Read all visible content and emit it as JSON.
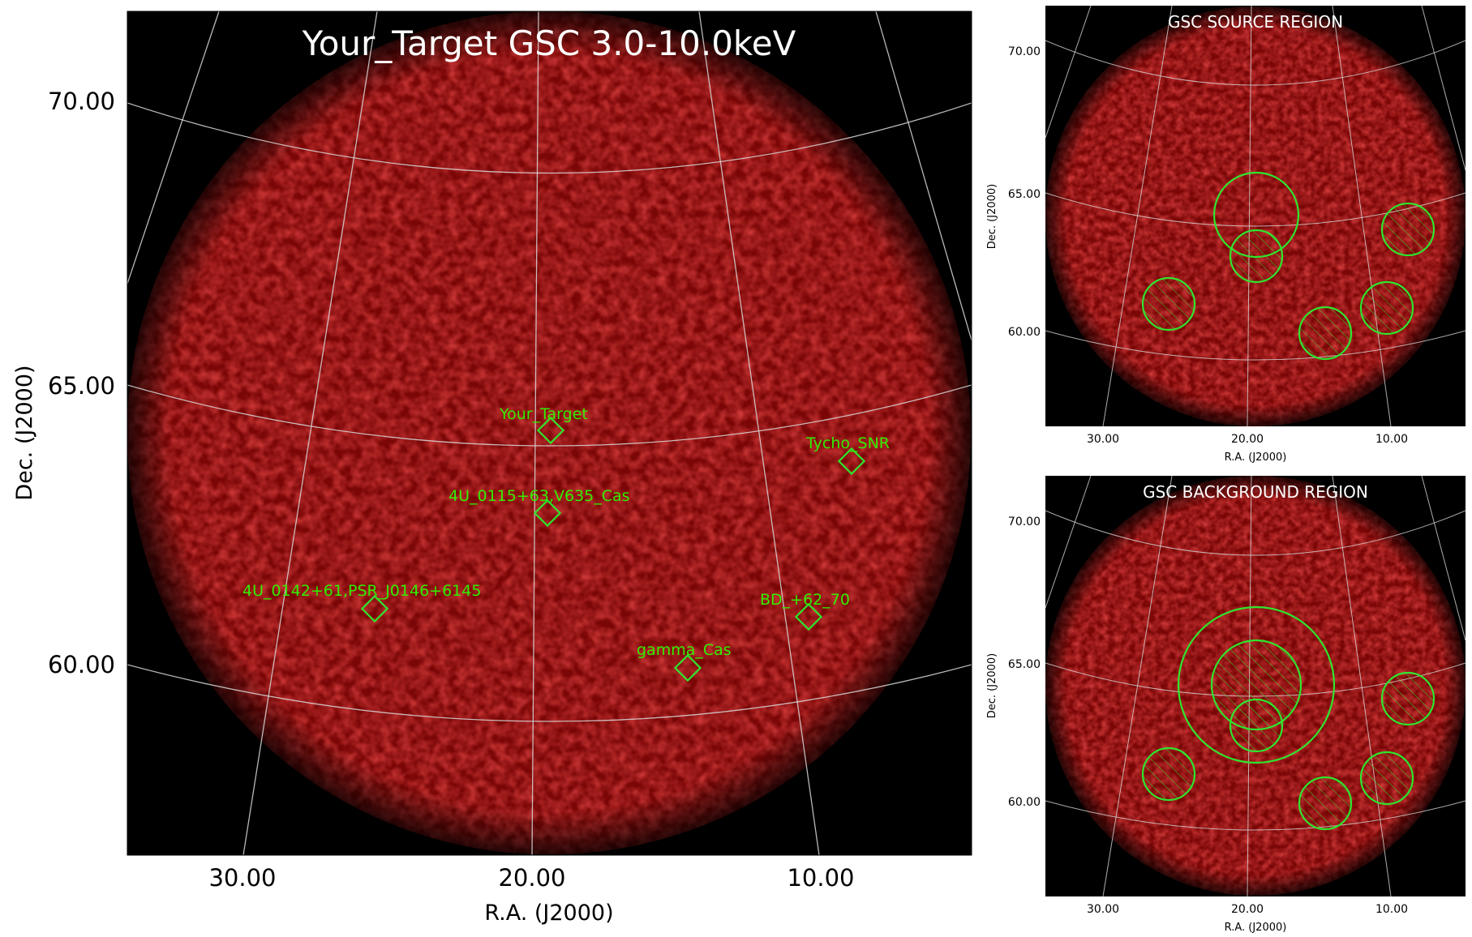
{
  "main_panel": {
    "title": "Your_Target GSC 3.0-10.0keV",
    "ylabel": "Dec. (J2000)",
    "xlabel": "R.A. (J2000)",
    "x_ticks": [
      "30.00",
      "20.00",
      "10.00"
    ],
    "y_ticks": [
      "70.00",
      "65.00",
      "60.00"
    ],
    "sources": [
      {
        "name": "Your_Target"
      },
      {
        "name": "Tycho_SNR"
      },
      {
        "name": "4U_0115+63,V635_Cas"
      },
      {
        "name": "4U_0142+61,PSR_J0146+6145"
      },
      {
        "name": "BD_+62_70"
      },
      {
        "name": "gamma_Cas"
      }
    ]
  },
  "source_panel": {
    "title": "GSC SOURCE REGION",
    "ylabel": "Dec. (J2000)",
    "xlabel": "R.A. (J2000)",
    "x_ticks": [
      "30.00",
      "20.00",
      "10.00"
    ],
    "y_ticks": [
      "70.00",
      "65.00",
      "60.00"
    ]
  },
  "background_panel": {
    "title": "GSC BACKGROUND REGION",
    "ylabel": "Dec. (J2000)",
    "xlabel": "R.A. (J2000)",
    "x_ticks": [
      "30.00",
      "20.00",
      "10.00"
    ],
    "y_ticks": [
      "70.00",
      "65.00",
      "60.00"
    ]
  },
  "colors": {
    "image_background": "#000000",
    "emission": "#9a0d0d",
    "region_marker": "#2ee62e",
    "grid_line": "#d8d8d8"
  }
}
